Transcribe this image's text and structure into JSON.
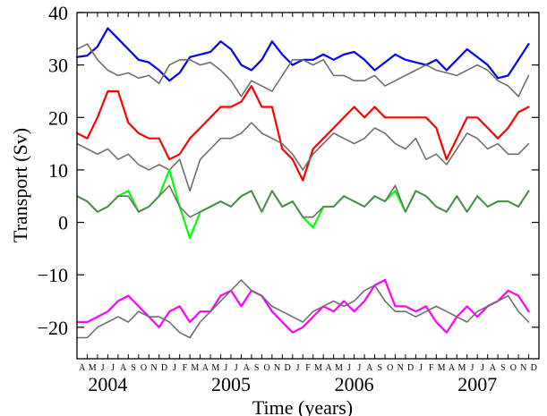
{
  "chart_data": {
    "type": "line",
    "xlabel": "Time (years)",
    "ylabel": "Transport (Sv)",
    "xlim": [
      "2004-04",
      "2008-01"
    ],
    "ylim": [
      -26,
      40
    ],
    "yticks": [
      40,
      30,
      20,
      10,
      0,
      -10,
      -20
    ],
    "ytick_labels": [
      "40",
      "30",
      "20",
      "10",
      "0",
      "−10",
      "−20"
    ],
    "month_labels": [
      "A",
      "M",
      "J",
      "J",
      "A",
      "S",
      "O",
      "N",
      "D",
      "J",
      "F",
      "M",
      "A",
      "M",
      "J",
      "J",
      "A",
      "S",
      "O",
      "N",
      "D",
      "J",
      "F",
      "M",
      "A",
      "M",
      "J",
      "J",
      "A",
      "S",
      "O",
      "N",
      "D",
      "J",
      "F",
      "M",
      "A",
      "M",
      "J",
      "J",
      "A",
      "S",
      "O",
      "N",
      "D"
    ],
    "year_labels": [
      "2004",
      "2005",
      "2006",
      "2007"
    ],
    "year_label_positions": [
      "2004-07",
      "2005-07",
      "2006-07",
      "2007-07"
    ],
    "grid": false,
    "legend": "none",
    "x": [
      "2004-04",
      "2004-05",
      "2004-06",
      "2004-07",
      "2004-08",
      "2004-09",
      "2004-10",
      "2004-11",
      "2004-12",
      "2005-01",
      "2005-02",
      "2005-03",
      "2005-04",
      "2005-05",
      "2005-06",
      "2005-07",
      "2005-08",
      "2005-09",
      "2005-10",
      "2005-11",
      "2005-12",
      "2006-01",
      "2006-02",
      "2006-03",
      "2006-04",
      "2006-05",
      "2006-06",
      "2006-07",
      "2006-08",
      "2006-09",
      "2006-10",
      "2006-11",
      "2006-12",
      "2007-01",
      "2007-02",
      "2007-03",
      "2007-04",
      "2007-05",
      "2007-06",
      "2007-07",
      "2007-08",
      "2007-09",
      "2007-10",
      "2007-11",
      "2007-12"
    ],
    "series": [
      {
        "color": "#0000ff",
        "values": [
          31.5,
          31.8,
          33.5,
          37,
          35,
          33,
          31,
          30.5,
          29,
          27,
          28.5,
          31.5,
          32,
          32.5,
          34.5,
          33,
          30,
          29,
          31,
          34.5,
          32,
          30,
          31,
          31,
          32,
          31,
          32,
          32.5,
          31,
          29,
          30.5,
          32,
          31,
          30.5,
          30,
          31,
          29,
          31,
          33,
          31.5,
          30,
          27.5,
          28,
          31,
          34
        ]
      },
      {
        "color": "#6e6e6e",
        "values": [
          33,
          34,
          31,
          29,
          28,
          28.5,
          27.5,
          28,
          26.5,
          30,
          31,
          31,
          30,
          30.5,
          29,
          27,
          24,
          27,
          26,
          25,
          28,
          31,
          31,
          30,
          31,
          28,
          28,
          27,
          27,
          28,
          26,
          27,
          28,
          29,
          30,
          29,
          28.5,
          28,
          29,
          30,
          29,
          27,
          26,
          24,
          28
        ]
      },
      {
        "color": "#ff0000",
        "values": [
          17,
          16,
          20,
          25,
          25,
          19,
          17,
          16,
          16,
          12,
          13,
          16,
          18,
          20,
          22,
          22,
          23,
          26,
          22,
          22,
          14,
          12,
          8,
          14,
          16,
          18,
          20,
          22,
          20,
          22,
          20,
          20,
          20,
          20,
          20,
          18,
          12,
          16,
          20,
          20,
          18,
          16,
          18,
          21,
          22
        ]
      },
      {
        "color": "#6e6e6e",
        "values": [
          15,
          14,
          13,
          14,
          12,
          13,
          11,
          10,
          11,
          10,
          12,
          6,
          12,
          14,
          16,
          16,
          17,
          19,
          17,
          16,
          15,
          13,
          10,
          13,
          15,
          17,
          16,
          15,
          16,
          18,
          17,
          15,
          14,
          16,
          12,
          13,
          11,
          14,
          17,
          16,
          14,
          15,
          13,
          13,
          15
        ]
      },
      {
        "color": "#00ff00",
        "values": [
          5,
          4,
          2,
          3,
          5,
          6,
          2,
          3,
          5,
          10,
          3,
          -3,
          2,
          3,
          4,
          3,
          5,
          6,
          2,
          6,
          3,
          4,
          1,
          -1,
          3,
          3,
          5,
          4,
          3,
          5,
          4,
          6,
          2,
          6,
          5,
          3,
          2,
          5,
          2,
          5,
          3,
          4,
          4,
          3,
          6
        ]
      },
      {
        "color": "#6e6e6e",
        "values": [
          5,
          4,
          2,
          3,
          5,
          5,
          2,
          3,
          5,
          7,
          3,
          1,
          2,
          3,
          4,
          3,
          5,
          6,
          2,
          6,
          3,
          4,
          1,
          1,
          3,
          3,
          5,
          4,
          3,
          5,
          4,
          7,
          2,
          6,
          5,
          3,
          2,
          5,
          2,
          5,
          3,
          4,
          4,
          3,
          6
        ]
      },
      {
        "color": "#ff00ff",
        "values": [
          -19,
          -19,
          -18,
          -17,
          -15,
          -14,
          -16,
          -18,
          -20,
          -17,
          -16,
          -19,
          -17,
          -17,
          -14,
          -13,
          -16,
          -13,
          -14,
          -17,
          -19,
          -21,
          -20,
          -18,
          -16,
          -17,
          -15,
          -17,
          -15,
          -12,
          -11,
          -16,
          -16,
          -17,
          -16,
          -19,
          -21,
          -18,
          -16,
          -18,
          -16,
          -15,
          -13,
          -14,
          -17
        ]
      },
      {
        "color": "#6e6e6e",
        "values": [
          -22,
          -22,
          -20,
          -19,
          -18,
          -19,
          -17,
          -18,
          -18,
          -19,
          -21,
          -22,
          -19,
          -17,
          -15,
          -13,
          -11,
          -13,
          -14,
          -16,
          -17,
          -18,
          -19,
          -17,
          -16,
          -15,
          -16,
          -15,
          -13,
          -12,
          -15,
          -17,
          -17,
          -18,
          -17,
          -16,
          -17,
          -18,
          -19,
          -17,
          -16,
          -15,
          -14,
          -17,
          -19
        ]
      }
    ]
  }
}
